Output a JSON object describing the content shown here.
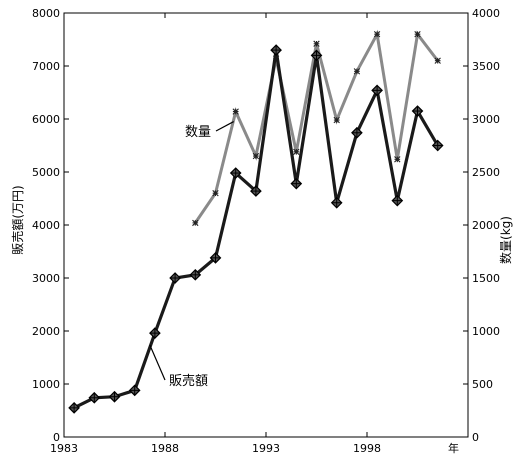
{
  "chart_data": {
    "type": "line",
    "title": "",
    "xlabel": "",
    "x_unit_label": "年",
    "x_ticks": [
      1983,
      1988,
      1993,
      1998
    ],
    "xlim": [
      1983,
      2003
    ],
    "y_left": {
      "label": "販売額(万円)",
      "ylim": [
        0,
        8000
      ],
      "ticks": [
        0,
        1000,
        2000,
        3000,
        4000,
        5000,
        6000,
        7000,
        8000
      ]
    },
    "y_right": {
      "label": "数量(kg)",
      "ylim": [
        0,
        4000
      ],
      "ticks": [
        0,
        500,
        1000,
        1500,
        2000,
        2500,
        3000,
        3500,
        4000
      ]
    },
    "grid": false,
    "series": [
      {
        "name": "販売額",
        "axis": "left",
        "color": "#1a1a1a",
        "marker": "diamond",
        "points": [
          {
            "x": 1983.5,
            "y": 550
          },
          {
            "x": 1984.5,
            "y": 740
          },
          {
            "x": 1985.5,
            "y": 760
          },
          {
            "x": 1986.5,
            "y": 880
          },
          {
            "x": 1987.5,
            "y": 1960
          },
          {
            "x": 1988.5,
            "y": 3000
          },
          {
            "x": 1989.5,
            "y": 3060
          },
          {
            "x": 1990.5,
            "y": 3380
          },
          {
            "x": 1991.5,
            "y": 4980
          },
          {
            "x": 1992.5,
            "y": 4640
          },
          {
            "x": 1993.5,
            "y": 7300
          },
          {
            "x": 1994.5,
            "y": 4780
          },
          {
            "x": 1995.5,
            "y": 7200
          },
          {
            "x": 1996.5,
            "y": 4420
          },
          {
            "x": 1997.5,
            "y": 5740
          },
          {
            "x": 1998.5,
            "y": 6540
          },
          {
            "x": 1999.5,
            "y": 4460
          },
          {
            "x": 2000.5,
            "y": 6150
          },
          {
            "x": 2001.5,
            "y": 5500
          }
        ]
      },
      {
        "name": "数量",
        "axis": "right",
        "color": "#8a8a8a",
        "marker": "star",
        "points": [
          {
            "x": 1989.5,
            "y": 2020
          },
          {
            "x": 1990.5,
            "y": 2300
          },
          {
            "x": 1991.5,
            "y": 3070
          },
          {
            "x": 1992.5,
            "y": 2650
          },
          {
            "x": 1993.5,
            "y": 3570
          },
          {
            "x": 1994.5,
            "y": 2690
          },
          {
            "x": 1995.5,
            "y": 3710
          },
          {
            "x": 1996.5,
            "y": 2990
          },
          {
            "x": 1997.5,
            "y": 3450
          },
          {
            "x": 1998.5,
            "y": 3800
          },
          {
            "x": 1999.5,
            "y": 2620
          },
          {
            "x": 2000.5,
            "y": 3800
          },
          {
            "x": 2001.5,
            "y": 3550
          }
        ]
      }
    ],
    "annotations": [
      {
        "text": "数量",
        "series": "数量"
      },
      {
        "text": "販売額",
        "series": "販売額"
      }
    ]
  }
}
